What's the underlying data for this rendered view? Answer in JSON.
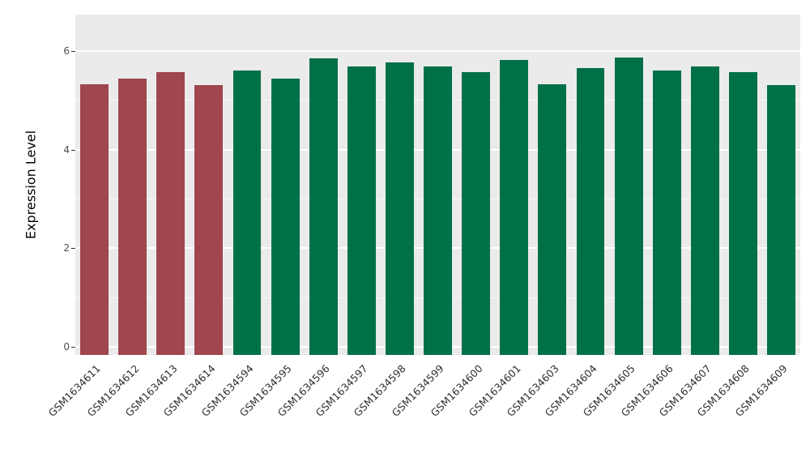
{
  "figure": {
    "background": "#FFFFFF",
    "panel_background": "#EBEBEB",
    "grid_color": "#FFFFFF",
    "tick_color": "#333333",
    "tick_label_color": "#4D4D4D"
  },
  "chart_data": {
    "type": "bar",
    "title": "",
    "xlabel": "",
    "ylabel": "Expression Level",
    "ylim": [
      0,
      6.3
    ],
    "yticks": [
      0,
      2,
      4,
      6
    ],
    "yticks_minor": [
      1,
      3,
      5
    ],
    "grid": "on",
    "legend": "none",
    "categories": [
      "GSM1634611",
      "GSM1634612",
      "GSM1634613",
      "GSM1634614",
      "GSM1634594",
      "GSM1634595",
      "GSM1634596",
      "GSM1634597",
      "GSM1634598",
      "GSM1634599",
      "GSM1634600",
      "GSM1634601",
      "GSM1634603",
      "GSM1634604",
      "GSM1634605",
      "GSM1634606",
      "GSM1634607",
      "GSM1634608",
      "GSM1634609"
    ],
    "values": [
      5.32,
      5.44,
      5.57,
      5.31,
      5.6,
      5.44,
      5.85,
      5.68,
      5.77,
      5.69,
      5.58,
      5.82,
      5.32,
      5.65,
      5.87,
      5.6,
      5.68,
      5.57,
      5.31
    ],
    "colors": [
      "#A0464E",
      "#A0464E",
      "#A0464E",
      "#A0464E",
      "#007147",
      "#007147",
      "#007147",
      "#007147",
      "#007147",
      "#007147",
      "#007147",
      "#007147",
      "#007147",
      "#007147",
      "#007147",
      "#007147",
      "#007147",
      "#007147",
      "#007147"
    ],
    "group_colors": {
      "group1": "#A0464E",
      "group2": "#007147"
    }
  }
}
